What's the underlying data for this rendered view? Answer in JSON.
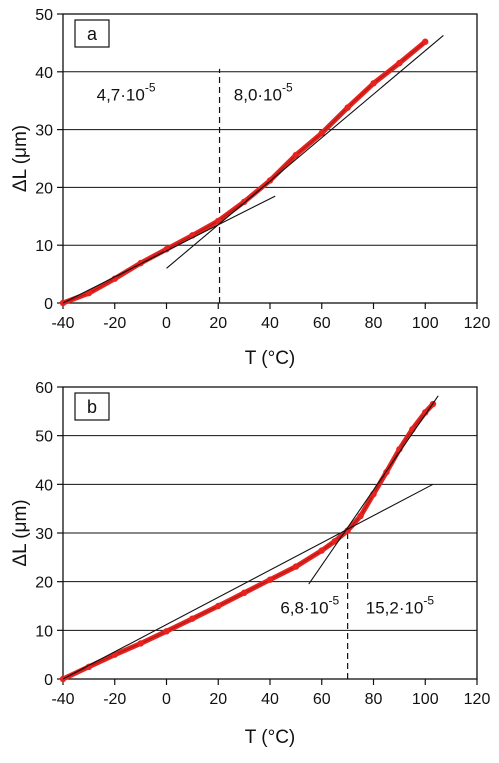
{
  "chart_data": [
    {
      "type": "line",
      "panel_label": "a",
      "xlabel": "T (°C)",
      "ylabel": "ΔL (μm)",
      "xlim": [
        -40,
        120
      ],
      "ylim": [
        0,
        50
      ],
      "x_ticks": [
        -40,
        -20,
        0,
        20,
        40,
        60,
        80,
        100,
        120
      ],
      "x_tick_labels": [
        "-40",
        "-20",
        "0",
        "20",
        "40",
        "60",
        "80",
        "100",
        "120"
      ],
      "y_ticks": [
        0,
        10,
        20,
        30,
        40,
        50
      ],
      "y_tick_labels": [
        "0",
        "10",
        "20",
        "30",
        "40",
        "50"
      ],
      "grid": "horizontal",
      "colors": {
        "measured": "#e8231f",
        "fit": "#111111"
      },
      "series": [
        {
          "role": "measured",
          "x": [
            -40,
            -30,
            -20,
            -10,
            0,
            10,
            20,
            30,
            40,
            50,
            60,
            70,
            80,
            90,
            100
          ],
          "y": [
            0,
            1.7,
            4.2,
            6.9,
            9.3,
            11.7,
            14.2,
            17.5,
            21.2,
            25.6,
            29.4,
            33.8,
            38.0,
            41.5,
            45.2
          ]
        },
        {
          "role": "fit",
          "x": [
            -40,
            42
          ],
          "y": [
            0,
            18.5
          ]
        },
        {
          "role": "fit",
          "x": [
            0,
            107
          ],
          "y": [
            6.0,
            46.3
          ]
        }
      ],
      "markers": [
        {
          "type": "vline",
          "x": 20.5,
          "ymax": 40.5,
          "style": "dashed"
        }
      ],
      "annotations": [
        {
          "mantissa": "4,7·10",
          "exponent": "-5",
          "x": -27,
          "y": 35
        },
        {
          "mantissa": "8,0·10",
          "exponent": "-5",
          "x": 26,
          "y": 35
        }
      ]
    },
    {
      "type": "line",
      "panel_label": "b",
      "xlabel": "T (°C)",
      "ylabel": "ΔL (μm)",
      "xlim": [
        -40,
        120
      ],
      "ylim": [
        0,
        60
      ],
      "x_ticks": [
        -40,
        -20,
        0,
        20,
        40,
        60,
        80,
        100,
        120
      ],
      "x_tick_labels": [
        "-40",
        "-20",
        "0",
        "20",
        "40",
        "60",
        "80",
        "100",
        "120"
      ],
      "y_ticks": [
        0,
        10,
        20,
        30,
        40,
        50,
        60
      ],
      "y_tick_labels": [
        "0",
        "10",
        "20",
        "30",
        "40",
        "50",
        "60"
      ],
      "grid": "horizontal",
      "colors": {
        "measured": "#e8231f",
        "fit": "#111111"
      },
      "series": [
        {
          "role": "measured",
          "x": [
            -40,
            -30,
            -20,
            -10,
            0,
            10,
            20,
            30,
            40,
            50,
            60,
            65,
            70,
            75,
            80,
            85,
            90,
            95,
            100,
            103
          ],
          "y": [
            0,
            2.5,
            5.0,
            7.3,
            9.8,
            12.4,
            15.0,
            17.7,
            20.4,
            23.1,
            26.4,
            28.3,
            30.5,
            33.5,
            38.0,
            42.5,
            47.2,
            51.3,
            54.8,
            56.5
          ]
        },
        {
          "role": "fit",
          "x": [
            -40,
            103
          ],
          "y": [
            0,
            40.0
          ]
        },
        {
          "role": "fit",
          "x": [
            55,
            105
          ],
          "y": [
            19.5,
            58.2
          ]
        }
      ],
      "markers": [
        {
          "type": "vline",
          "x": 70,
          "ymax": 30.5,
          "style": "dashed"
        }
      ],
      "annotations": [
        {
          "mantissa": "6,8·10",
          "exponent": "-5",
          "x": 44,
          "y": 13.5
        },
        {
          "mantissa": "15,2·10",
          "exponent": "-5",
          "x": 77,
          "y": 13.5
        }
      ]
    }
  ]
}
